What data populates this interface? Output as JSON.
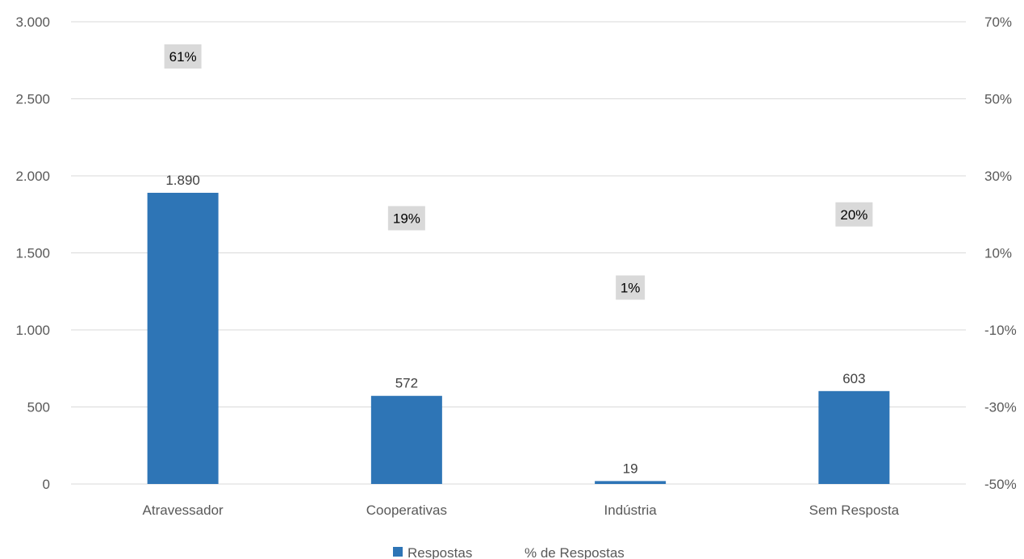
{
  "chart_data": {
    "type": "bar",
    "categories": [
      "Atravessador",
      "Cooperativas",
      "Indústria",
      "Sem Resposta"
    ],
    "series": [
      {
        "name": "Respostas",
        "values": [
          1890,
          572,
          19,
          603
        ],
        "value_labels": [
          "1.890",
          "572",
          "19",
          "603"
        ],
        "axis": "left",
        "color": "#2E75B6"
      },
      {
        "name": "% de Respostas",
        "values": [
          61,
          19,
          1,
          20
        ],
        "value_labels": [
          "61%",
          "19%",
          "1%",
          "20%"
        ],
        "axis": "right",
        "label_background": "#D9D9D9"
      }
    ],
    "y_left": {
      "range": [
        0,
        3000
      ],
      "ticks": [
        0,
        500,
        1000,
        1500,
        2000,
        2500,
        3000
      ],
      "tick_labels": [
        "0",
        "500",
        "1.000",
        "1.500",
        "2.000",
        "2.500",
        "3.000"
      ]
    },
    "y_right": {
      "range": [
        -50,
        70
      ],
      "ticks": [
        -50,
        -30,
        -10,
        10,
        30,
        50,
        70
      ],
      "tick_labels": [
        "-50%",
        "-30%",
        "-10%",
        "10%",
        "30%",
        "50%",
        "70%"
      ]
    },
    "grid": true,
    "gridline_color": "#D9D9D9",
    "legend_position": "bottom"
  }
}
